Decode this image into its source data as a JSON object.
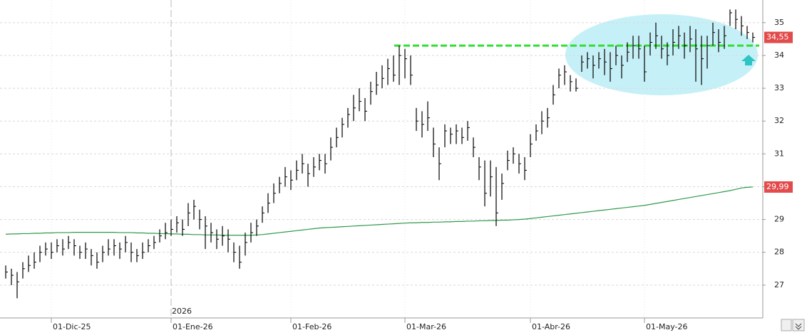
{
  "chart_data": {
    "type": "ohlc",
    "categories": [
      null,
      null,
      null,
      null,
      null,
      null,
      null,
      null,
      "01-Dic-25",
      null,
      null,
      null,
      null,
      null,
      null,
      null,
      null,
      null,
      null,
      null,
      null,
      null,
      null,
      null,
      null,
      null,
      null,
      null,
      null,
      "01-Ene-26",
      null,
      null,
      null,
      null,
      null,
      null,
      null,
      null,
      null,
      null,
      null,
      null,
      null,
      null,
      null,
      null,
      null,
      null,
      null,
      null,
      "01-Feb-26",
      null,
      null,
      null,
      null,
      null,
      null,
      null,
      null,
      null,
      null,
      null,
      null,
      null,
      null,
      null,
      null,
      null,
      null,
      null,
      "01-Mar-26",
      null,
      null,
      null,
      null,
      null,
      null,
      null,
      null,
      null,
      null,
      null,
      null,
      null,
      null,
      null,
      null,
      null,
      null,
      null,
      null,
      null,
      "01-Abr-26",
      null,
      null,
      null,
      null,
      null,
      null,
      null,
      null,
      null,
      null,
      null,
      null,
      null,
      null,
      null,
      null,
      null,
      null,
      null,
      "01-May-26",
      null,
      null,
      null,
      null,
      null,
      null,
      null,
      null,
      null,
      null,
      null,
      null,
      null,
      null,
      null,
      null,
      null,
      null,
      null
    ],
    "year_label": "2026",
    "color": "#000000",
    "high": [
      27.6,
      27.5,
      27.4,
      27.7,
      27.9,
      28.0,
      28.2,
      28.3,
      28.3,
      28.4,
      28.4,
      28.5,
      28.4,
      28.2,
      28.3,
      28.1,
      28.0,
      28.2,
      28.4,
      28.4,
      28.3,
      28.5,
      28.3,
      28.1,
      28.3,
      28.4,
      28.5,
      28.7,
      28.9,
      29.0,
      29.1,
      29.0,
      29.5,
      29.6,
      29.3,
      29.1,
      28.9,
      28.7,
      28.8,
      28.7,
      28.3,
      28.2,
      28.6,
      28.9,
      29.0,
      29.4,
      29.8,
      30.1,
      30.3,
      30.6,
      30.5,
      30.8,
      31.0,
      30.7,
      30.9,
      31.0,
      31.0,
      31.5,
      31.8,
      32.1,
      32.4,
      32.8,
      33.0,
      32.7,
      33.2,
      33.5,
      33.7,
      33.9,
      34.0,
      34.3,
      34.2,
      34.0,
      32.4,
      32.3,
      32.6,
      31.8,
      31.2,
      31.9,
      31.8,
      31.9,
      31.8,
      32.0,
      31.5,
      30.9,
      30.8,
      30.8,
      30.6,
      30.4,
      31.1,
      31.2,
      31.0,
      30.9,
      31.6,
      31.9,
      32.3,
      32.4,
      33.1,
      33.6,
      33.7,
      33.4,
      33.3,
      34.0,
      34.1,
      34.0,
      34.1,
      34.2,
      34.1,
      34.3,
      34.0,
      34.4,
      34.6,
      34.6,
      34.3,
      34.7,
      35.0,
      34.6,
      34.4,
      34.8,
      34.9,
      34.7,
      34.9,
      34.8,
      34.6,
      34.6,
      35.0,
      34.8,
      34.9,
      35.4,
      35.4,
      35.2,
      34.9,
      34.7
    ],
    "low": [
      27.2,
      27.0,
      26.6,
      27.2,
      27.4,
      27.5,
      27.7,
      27.9,
      27.8,
      28.0,
      27.9,
      28.1,
      27.9,
      27.8,
      27.8,
      27.6,
      27.5,
      27.7,
      27.9,
      27.9,
      27.8,
      28.0,
      27.7,
      27.7,
      27.8,
      28.0,
      28.1,
      28.3,
      28.4,
      28.5,
      28.6,
      28.5,
      28.8,
      29.0,
      28.7,
      28.1,
      28.3,
      28.1,
      28.2,
      28.0,
      27.7,
      27.5,
      27.9,
      28.3,
      28.5,
      28.9,
      29.2,
      29.5,
      29.8,
      30.0,
      29.9,
      30.2,
      30.4,
      30.0,
      30.3,
      30.5,
      30.4,
      30.8,
      31.2,
      31.5,
      31.8,
      32.0,
      32.3,
      32.0,
      32.5,
      32.8,
      33.0,
      33.1,
      33.2,
      33.1,
      33.3,
      33.1,
      31.7,
      31.5,
      31.7,
      30.9,
      30.2,
      31.2,
      31.3,
      31.3,
      31.3,
      31.4,
      30.9,
      30.2,
      29.4,
      29.7,
      28.8,
      29.6,
      30.5,
      30.7,
      30.4,
      30.2,
      30.9,
      31.4,
      31.6,
      31.8,
      32.5,
      33.0,
      33.1,
      32.9,
      32.9,
      33.5,
      33.6,
      33.3,
      33.6,
      33.4,
      33.2,
      33.7,
      33.3,
      33.8,
      33.9,
      33.9,
      33.2,
      34.0,
      34.2,
      33.9,
      33.7,
      34.0,
      34.2,
      33.9,
      34.1,
      33.2,
      33.1,
      33.6,
      34.3,
      34.1,
      34.2,
      34.9,
      34.8,
      34.6,
      34.5,
      34.4
    ],
    "close": [
      27.4,
      27.3,
      27.1,
      27.5,
      27.6,
      27.7,
      28.0,
      28.1,
      28.0,
      28.2,
      28.1,
      28.3,
      28.2,
      28.0,
      28.1,
      27.9,
      27.7,
      28.0,
      28.1,
      28.2,
      28.1,
      28.3,
      28.0,
      27.9,
      28.0,
      28.2,
      28.3,
      28.5,
      28.6,
      28.7,
      28.9,
      28.7,
      29.2,
      29.4,
      29.0,
      28.8,
      28.6,
      28.4,
      28.5,
      28.4,
      28.0,
      27.7,
      28.3,
      28.6,
      28.8,
      29.2,
      29.5,
      29.8,
      30.1,
      30.3,
      30.2,
      30.5,
      30.7,
      30.4,
      30.6,
      30.8,
      30.7,
      31.2,
      31.5,
      31.9,
      32.2,
      32.4,
      32.6,
      32.3,
      32.9,
      33.1,
      33.3,
      33.6,
      33.4,
      34.0,
      33.9,
      33.4,
      32.0,
      31.9,
      32.1,
      31.3,
      30.7,
      31.7,
      31.6,
      31.7,
      31.5,
      31.8,
      31.2,
      30.6,
      29.8,
      30.3,
      29.2,
      30.1,
      30.8,
      31.0,
      30.7,
      30.5,
      31.3,
      31.7,
      32.0,
      32.1,
      32.8,
      33.4,
      33.5,
      33.2,
      33.0,
      33.8,
      33.9,
      33.7,
      33.9,
      33.8,
      33.6,
      34.0,
      33.7,
      34.1,
      34.3,
      34.2,
      33.5,
      34.4,
      34.6,
      34.2,
      34.0,
      34.4,
      34.6,
      34.3,
      34.5,
      34.2,
      33.9,
      34.3,
      34.7,
      34.4,
      34.6,
      35.3,
      35.1,
      34.9,
      34.7,
      34.55
    ],
    "last_label": "34,55",
    "ma": {
      "color": "#2e9a48",
      "last_label": "29,99",
      "values": [
        28.55,
        28.56,
        28.56,
        28.57,
        28.57,
        28.58,
        28.58,
        28.59,
        28.59,
        28.6,
        28.6,
        28.6,
        28.61,
        28.61,
        28.61,
        28.61,
        28.61,
        28.61,
        28.61,
        28.61,
        28.6,
        28.6,
        28.6,
        28.59,
        28.59,
        28.58,
        28.58,
        28.57,
        28.57,
        28.56,
        28.56,
        28.55,
        28.55,
        28.54,
        28.54,
        28.53,
        28.53,
        28.53,
        28.52,
        28.52,
        28.52,
        28.52,
        28.52,
        28.52,
        28.53,
        28.54,
        28.56,
        28.58,
        28.6,
        28.62,
        28.64,
        28.66,
        28.68,
        28.7,
        28.72,
        28.74,
        28.75,
        28.76,
        28.77,
        28.78,
        28.79,
        28.8,
        28.81,
        28.82,
        28.83,
        28.84,
        28.85,
        28.86,
        28.87,
        28.88,
        28.89,
        28.9,
        28.9,
        28.91,
        28.91,
        28.92,
        28.92,
        28.93,
        28.93,
        28.94,
        28.94,
        28.95,
        28.95,
        28.96,
        28.96,
        28.97,
        28.97,
        28.98,
        28.98,
        28.99,
        29.0,
        29.01,
        29.03,
        29.05,
        29.07,
        29.09,
        29.11,
        29.13,
        29.15,
        29.17,
        29.19,
        29.21,
        29.23,
        29.25,
        29.27,
        29.29,
        29.31,
        29.33,
        29.35,
        29.37,
        29.39,
        29.41,
        29.43,
        29.46,
        29.49,
        29.52,
        29.55,
        29.58,
        29.61,
        29.64,
        29.67,
        29.7,
        29.73,
        29.76,
        29.79,
        29.82,
        29.85,
        29.88,
        29.92,
        29.96,
        29.98,
        29.99
      ]
    },
    "resistance": {
      "value": 34.3,
      "color": "#33dd33"
    },
    "ylim": [
      26,
      35.69
    ],
    "yticks": [
      27,
      28,
      29,
      30,
      31,
      32,
      33,
      34,
      35
    ],
    "grid": true
  }
}
